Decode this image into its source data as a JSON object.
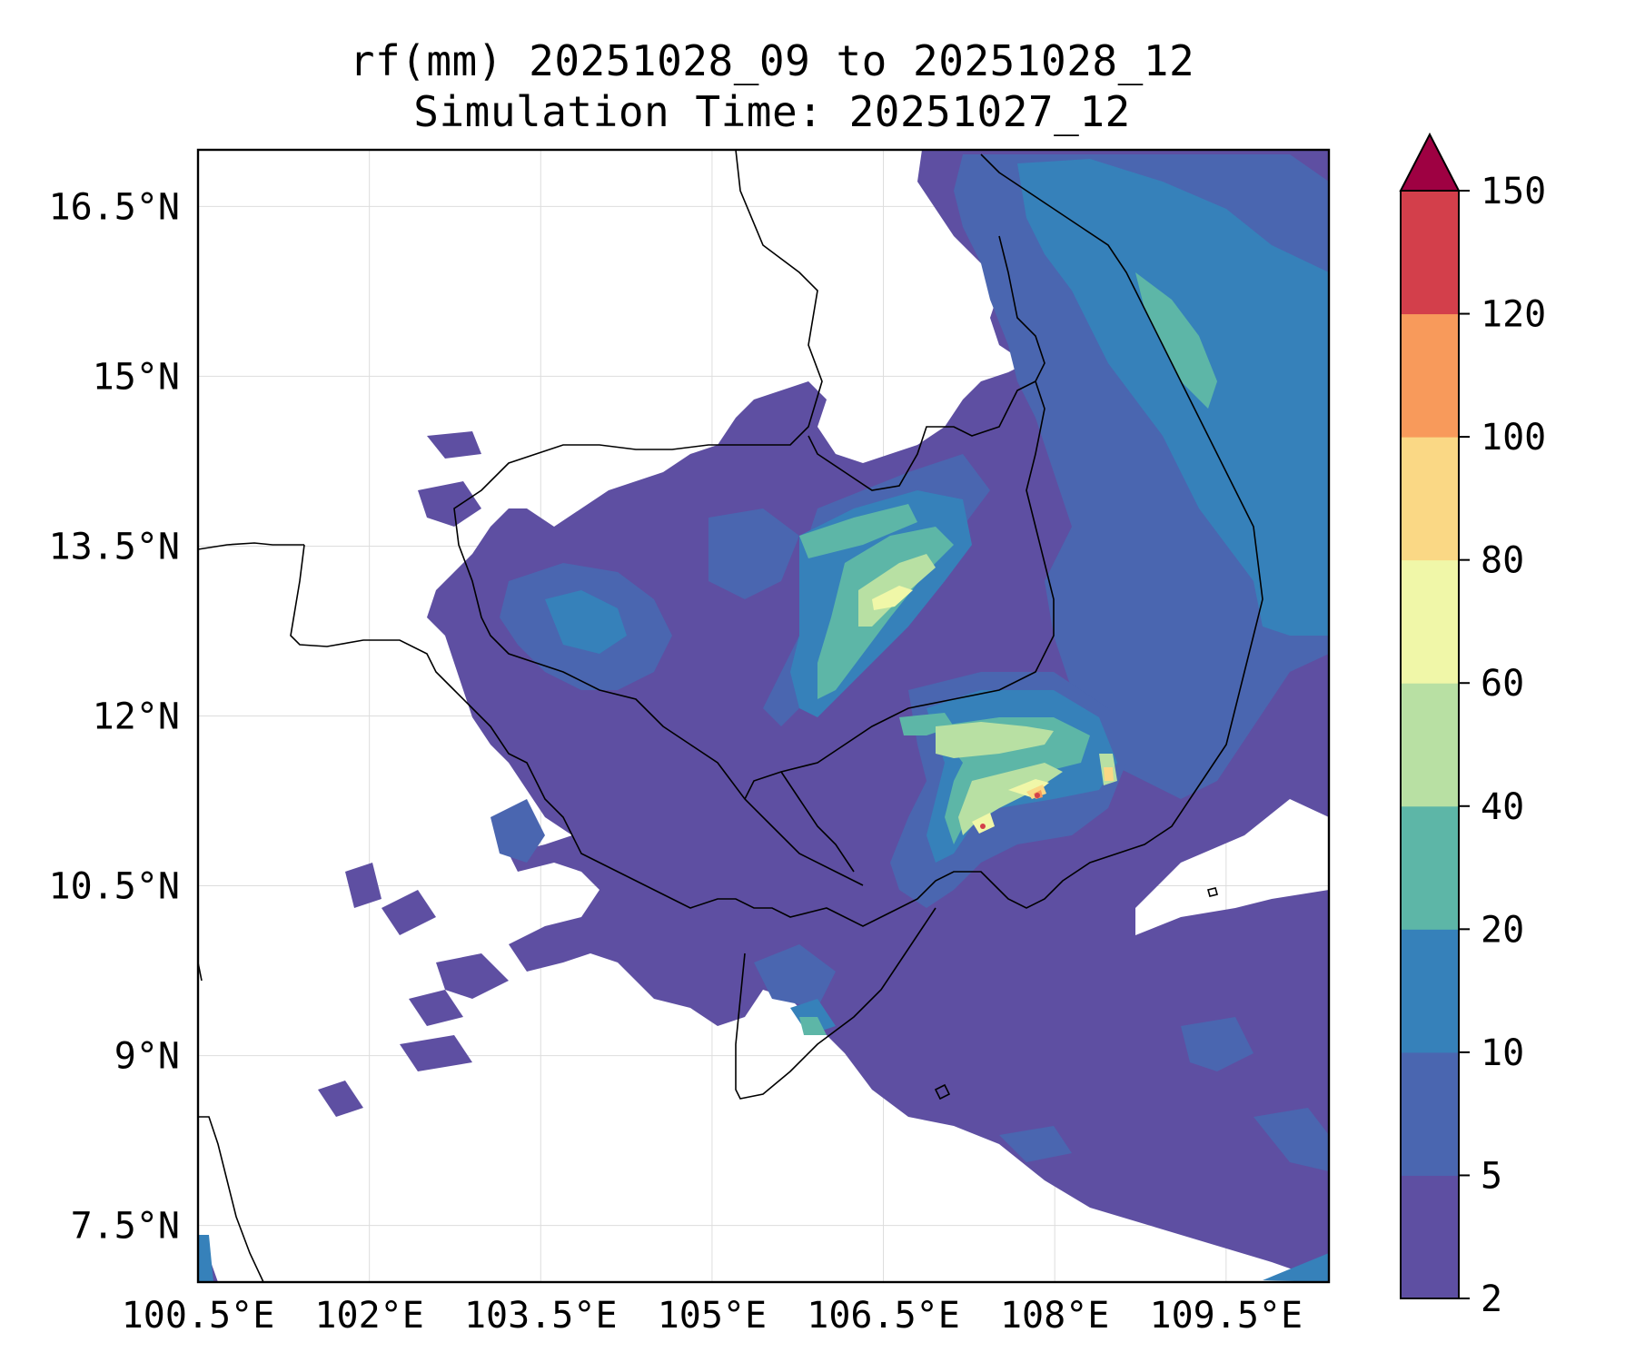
{
  "title": {
    "line1": "rf(mm) 20251028_09 to 20251028_12",
    "line2": "Simulation Time: 20251027_12"
  },
  "map": {
    "lon_ticks": [
      "100.5°E",
      "102°E",
      "103.5°E",
      "105°E",
      "106.5°E",
      "108°E",
      "109.5°E"
    ],
    "lat_ticks": [
      "16.5°N",
      "15°N",
      "13.5°N",
      "12°N",
      "10.5°N",
      "9°N",
      "7.5°N"
    ],
    "lon_range": [
      100.5,
      110.4
    ],
    "lat_range": [
      7.0,
      17.0
    ],
    "grid": true,
    "coastline_color": "#000000"
  },
  "colorbar": {
    "levels": [
      "2",
      "5",
      "10",
      "20",
      "40",
      "60",
      "80",
      "100",
      "120",
      "150"
    ],
    "colors": [
      "#5e4fa2",
      "#4a66b0",
      "#3681ba",
      "#5db6a7",
      "#b8e0a3",
      "#f0f7a8",
      "#fad885",
      "#f89a5b",
      "#d33f4b",
      "#9e0142"
    ],
    "extend": "max"
  }
}
